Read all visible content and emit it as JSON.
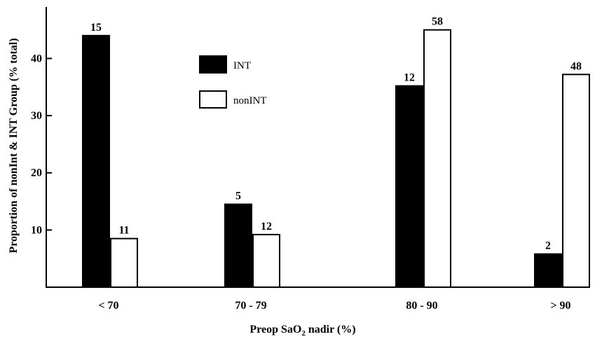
{
  "chart_data": {
    "type": "bar",
    "categories": [
      "< 70",
      "70 - 79",
      "80 - 90",
      "> 90"
    ],
    "series": [
      {
        "name": "INT",
        "values": [
          44,
          14.5,
          35.2,
          5.8
        ],
        "labels": [
          "15",
          "5",
          "12",
          "2"
        ],
        "color": "#000000"
      },
      {
        "name": "nonINT",
        "values": [
          8.5,
          9.2,
          45,
          37.2
        ],
        "labels": [
          "11",
          "12",
          "58",
          "48"
        ],
        "color": "#ffffff"
      }
    ],
    "xlabel_parts": [
      "Preop SaO",
      "2",
      " nadir (%)"
    ],
    "ylabel": "Proportion of nonInt & INT Group (% total)",
    "ylim": [
      0,
      49
    ],
    "yticks": [
      10,
      20,
      30,
      40
    ],
    "legend_position": "top-center",
    "grid": false
  }
}
